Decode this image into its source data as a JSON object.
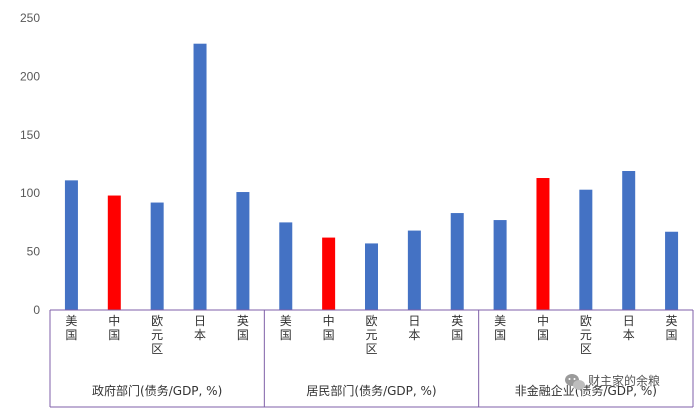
{
  "chart_data": {
    "type": "bar",
    "ylim": [
      0,
      250
    ],
    "yticks": [
      0,
      50,
      100,
      150,
      200,
      250
    ],
    "grid": false,
    "colors": {
      "default": "#4472C4",
      "highlight": "#FF0000",
      "axis": "#7F5FA8"
    },
    "groups": [
      {
        "label": "政府部门(债务/GDP, %)",
        "categories": [
          "美国",
          "中国",
          "欧元区",
          "日本",
          "英国"
        ],
        "values": [
          111,
          98,
          92,
          228,
          101
        ],
        "highlight_index": 1
      },
      {
        "label": "居民部门(债务/GDP, %)",
        "categories": [
          "美国",
          "中国",
          "欧元区",
          "日本",
          "英国"
        ],
        "values": [
          75,
          62,
          57,
          68,
          83
        ],
        "highlight_index": 1
      },
      {
        "label": "非金融企业(债务/GDP, %)",
        "categories": [
          "美国",
          "中国",
          "欧元区",
          "日本",
          "英国"
        ],
        "values": [
          77,
          113,
          103,
          119,
          67
        ],
        "highlight_index": 1
      }
    ]
  },
  "watermark": {
    "text": "财主家的余粮",
    "icon": "wechat-icon"
  }
}
